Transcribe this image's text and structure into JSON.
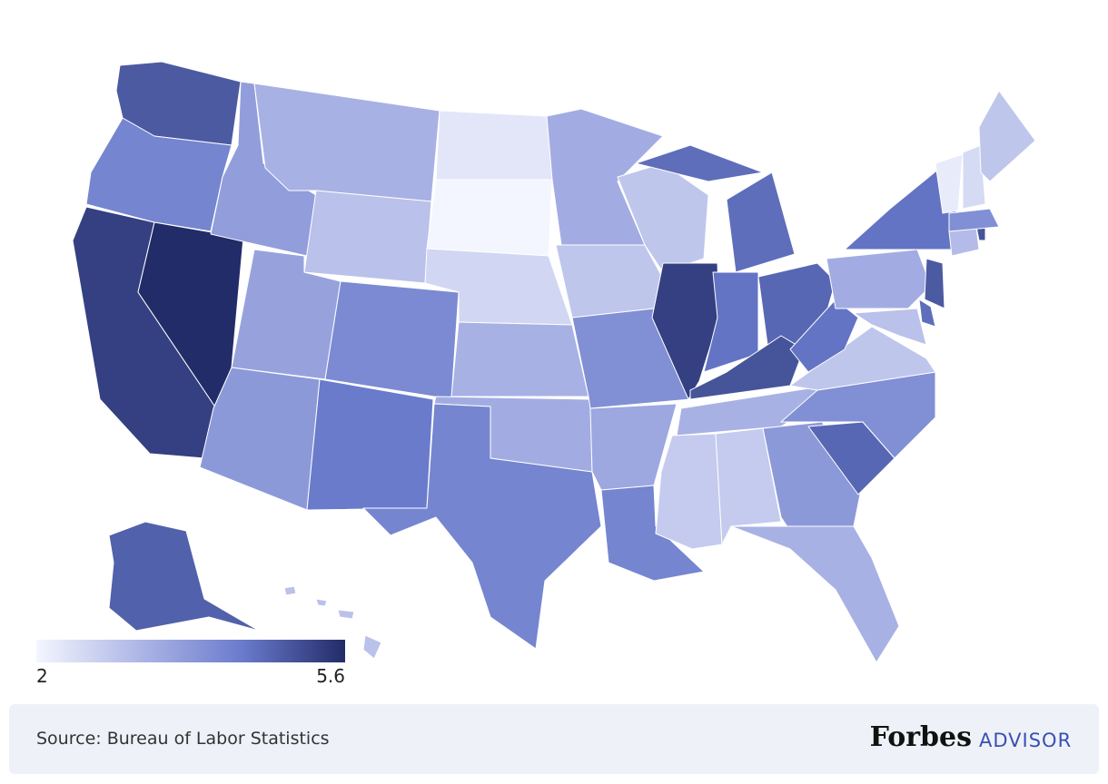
{
  "chart_data": {
    "type": "choropleth",
    "values": {
      "WA": 4.9,
      "OR": 4.2,
      "CA": 5.3,
      "NV": 5.6,
      "ID": 3.7,
      "MT": 3.3,
      "WY": 3.0,
      "UT": 3.6,
      "AZ": 3.8,
      "CO": 4.1,
      "NM": 4.4,
      "ND": 2.3,
      "SD": 2.0,
      "NE": 2.6,
      "KS": 3.3,
      "OK": 3.4,
      "TX": 4.2,
      "MN": 3.4,
      "IA": 2.9,
      "MO": 4.0,
      "AR": 3.5,
      "LA": 4.2,
      "WI": 2.9,
      "IL": 5.3,
      "MI": 4.6,
      "IN": 4.5,
      "OH": 4.7,
      "KY": 5.0,
      "TN": 3.3,
      "MS": 2.8,
      "AL": 2.8,
      "GA": 3.8,
      "FL": 3.3,
      "SC": 4.7,
      "NC": 4.0,
      "VA": 2.9,
      "WV": 4.5,
      "MD": 3.0,
      "DE": 4.6,
      "PA": 3.4,
      "NJ": 4.9,
      "NY": 4.5,
      "CT": 3.1,
      "RI": 5.0,
      "MA": 4.0,
      "VT": 2.2,
      "NH": 2.5,
      "ME": 2.9,
      "AK": 4.8,
      "HI": 3.0
    },
    "colorscale": [
      "#f3f6fe",
      "#aeb6e6",
      "#6a7bcc",
      "#222c68"
    ],
    "colorbar": {
      "min": 2,
      "max": 5.6,
      "ticks": [
        2,
        5.6
      ]
    }
  },
  "footer": {
    "source": "Source: Bureau of Labor Statistics",
    "brand_name": "Forbes",
    "brand_suffix": "ADVISOR"
  }
}
